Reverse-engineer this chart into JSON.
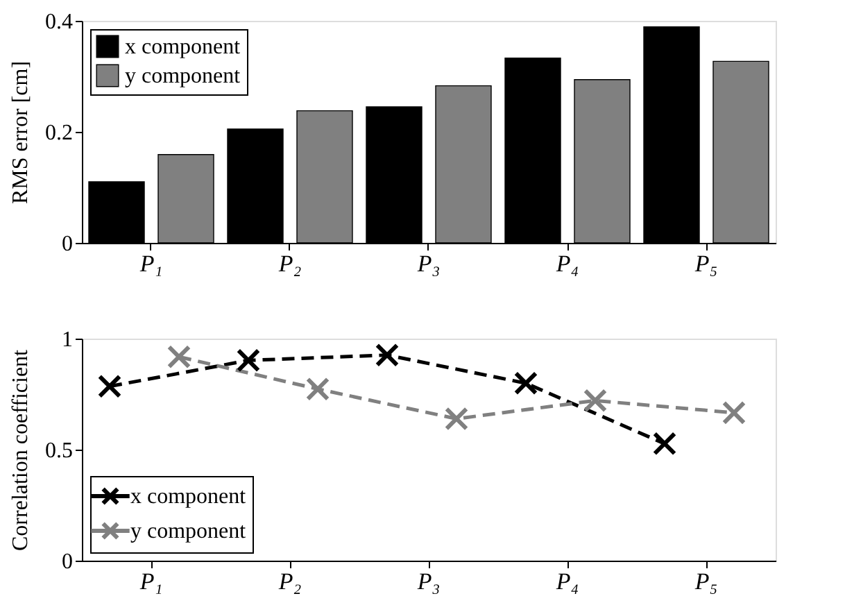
{
  "chart_data": [
    {
      "type": "bar",
      "ylabel": "RMS error [cm]",
      "categories": [
        "P₁",
        "P₂",
        "P₃",
        "P₄",
        "P₅"
      ],
      "series": [
        {
          "name": "x component",
          "color": "#000000",
          "values": [
            0.11,
            0.205,
            0.245,
            0.333,
            0.389
          ]
        },
        {
          "name": "y component",
          "color": "#808080",
          "values": [
            0.159,
            0.238,
            0.283,
            0.294,
            0.327
          ]
        }
      ],
      "ylim": [
        0,
        0.4
      ],
      "yticks": [
        0,
        0.2,
        0.4
      ],
      "grid": false,
      "legend": "top left"
    },
    {
      "type": "line",
      "ylabel": "Correlation coefficient",
      "marker": "cross",
      "line_style": "dashed",
      "series": [
        {
          "name": "x component",
          "color": "#000000",
          "values": [
            0.785,
            0.902,
            0.926,
            0.799,
            0.527
          ]
        },
        {
          "name": "y component",
          "color": "#808080",
          "values": [
            0.918,
            0.773,
            0.639,
            0.721,
            0.666
          ]
        }
      ],
      "categories": [
        "P₁",
        "P₂",
        "P₃",
        "P₄",
        "P₅"
      ],
      "ylim": [
        0,
        1
      ],
      "yticks": [
        0,
        0.5,
        1
      ],
      "grid": false,
      "legend": "bottom left"
    }
  ]
}
